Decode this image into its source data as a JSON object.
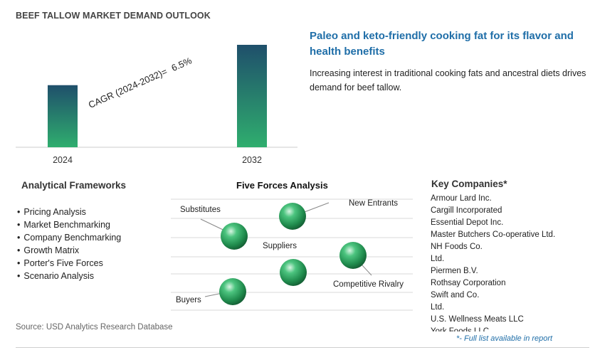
{
  "title": "BEEF TALLOW MARKET DEMAND OUTLOOK",
  "chart_data": {
    "type": "bar",
    "categories": [
      "2024",
      "2032"
    ],
    "values": [
      1.0,
      1.65
    ],
    "cagr_label": "CAGR (2024-2032)=",
    "cagr_value": "6.5%"
  },
  "headline": "Paleo and keto-friendly cooking fat for its flavor and health benefits",
  "headline_desc": "Increasing interest in traditional cooking fats and ancestral diets drives demand for beef tallow.",
  "frameworks": {
    "title": "Analytical Frameworks",
    "items": [
      "Pricing Analysis",
      "Market Benchmarking",
      "Company Benchmarking",
      "Growth Matrix",
      "Porter's Five Forces",
      "Scenario Analysis"
    ]
  },
  "five_forces": {
    "title": "Five Forces Analysis",
    "labels": {
      "substitutes": "Substitutes",
      "new_entrants": "New Entrants",
      "suppliers": "Suppliers",
      "competitive_rivalry": "Competitive Rivalry",
      "buyers": "Buyers"
    }
  },
  "companies": {
    "title": "Key Companies*",
    "items": [
      "Armour Lard Inc.",
      "Cargill Incorporated",
      "Essential Depot Inc.",
      "Master Butchers Co-operative Ltd.",
      "NH Foods Co.",
      "Ltd.",
      "Piermen B.V.",
      "Rothsay Corporation",
      "Swift and Co.",
      "Ltd.",
      "U.S. Wellness Meats LLC",
      "York Foods LLC"
    ],
    "note": "*- Full list available in report"
  },
  "source": "Source: USD Analytics Research Database",
  "colors": {
    "bar_top": "#1f4f6b",
    "bar_bottom": "#2fae6e",
    "sphere": "#2a9d5c",
    "accent": "#1f6ea8"
  }
}
